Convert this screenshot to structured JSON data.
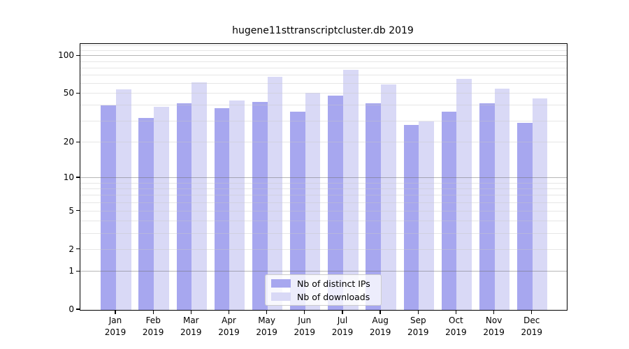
{
  "title": "hugene11sttranscriptcluster.db 2019",
  "chart_data": {
    "type": "bar",
    "categories": [
      "Jan",
      "Feb",
      "Mar",
      "Apr",
      "May",
      "Jun",
      "Jul",
      "Aug",
      "Sep",
      "Oct",
      "Nov",
      "Dec"
    ],
    "x_year_label": "2019",
    "series": [
      {
        "name": "Nb of distinct IPs",
        "color": "#a7a7ef",
        "values": [
          40,
          32,
          42,
          38,
          43,
          36,
          48,
          42,
          28,
          36,
          42,
          29
        ]
      },
      {
        "name": "Nb of downloads",
        "color": "#d9d9f6",
        "values": [
          54,
          39,
          62,
          44,
          68,
          51,
          78,
          59,
          30,
          66,
          55,
          46
        ]
      }
    ],
    "title": "hugene11sttranscriptcluster.db 2019",
    "xlabel": "",
    "ylabel": "",
    "yscale": "log1p",
    "ylim": [
      0,
      125
    ],
    "yticks": [
      0,
      1,
      2,
      5,
      10,
      20,
      50,
      100
    ],
    "minor_gridlines": [
      2,
      3,
      4,
      5,
      6,
      7,
      8,
      9,
      20,
      30,
      40,
      50,
      60,
      70,
      80,
      90,
      110,
      120
    ],
    "major_gridlines": [
      1,
      10,
      100
    ],
    "grid": true,
    "legend_position": "bottom-center"
  }
}
